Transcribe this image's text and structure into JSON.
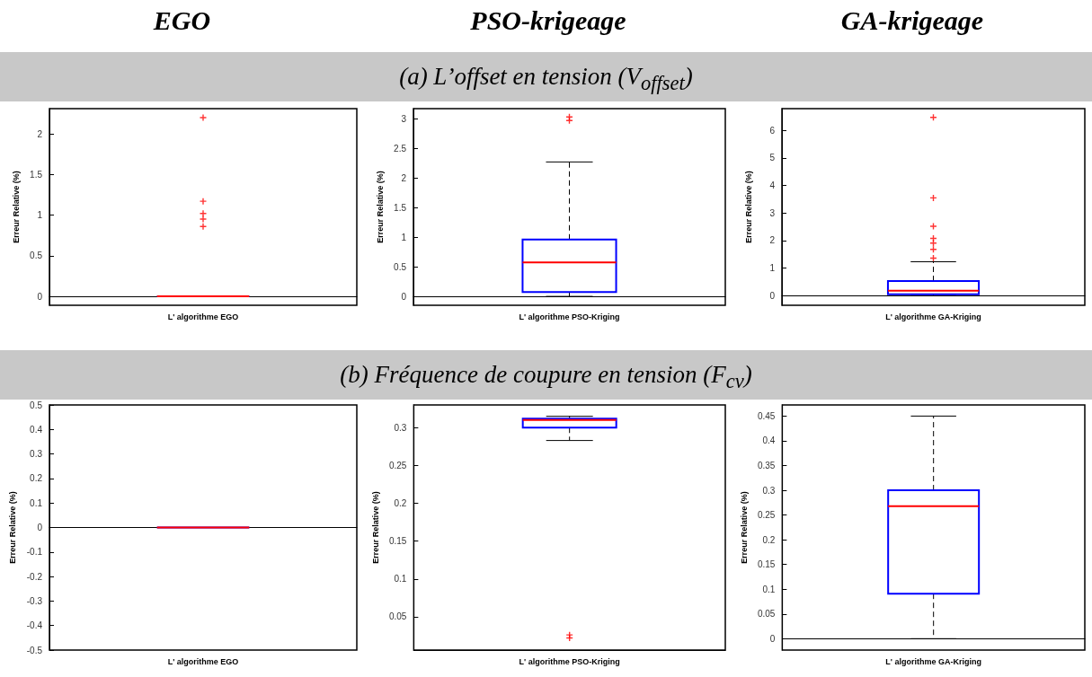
{
  "chart_data": [
    {
      "type": "box",
      "title": "EGO",
      "annotations": [
        "(a)  L’offset en tension (V$_{offset}$)"
      ],
      "categories": [
        "L' algorithme EGO"
      ],
      "ylabel": "Erreur Relative (%)",
      "ylim": [
        -0.11,
        2.31
      ],
      "yticks": [
        0,
        0.5,
        1,
        1.5,
        2
      ],
      "series": [
        {
          "color": "#0000ff",
          "boxes": [
            {
              "low": 0,
              "q1": 0,
              "median": 0,
              "q3": 0,
              "high": 0,
              "outliers": [
                2.2,
                1.17,
                1.02,
                0.95,
                0.86
              ]
            }
          ]
        }
      ]
    },
    {
      "type": "box",
      "title": "PSO-krigeage",
      "categories": [
        "L' algorithme PSO-Kriging"
      ],
      "ylabel": "Erreur Relative (%)",
      "ylim": [
        -0.15,
        3.17
      ],
      "yticks": [
        0,
        0.5,
        1,
        1.5,
        2,
        2.5,
        3
      ],
      "series": [
        {
          "color": "#0000ff",
          "boxes": [
            {
              "low": 0,
              "q1": 0.074,
              "median": 0.575,
              "q3": 0.96,
              "high": 2.27,
              "outliers": [
                3.03,
                2.97
              ]
            }
          ]
        }
      ]
    },
    {
      "type": "box",
      "title": "GA-krigeage",
      "categories": [
        "L' algorithme GA-Kriging"
      ],
      "ylabel": "Erreur Relative (%)",
      "ylim": [
        -0.35,
        6.79
      ],
      "yticks": [
        0,
        1,
        2,
        3,
        4,
        5,
        6
      ],
      "series": [
        {
          "color": "#0000ff",
          "boxes": [
            {
              "low": 0,
              "q1": 0.05,
              "median": 0.18,
              "q3": 0.53,
              "high": 1.23,
              "outliers": [
                6.47,
                3.55,
                2.52,
                2.08,
                1.91,
                1.68,
                1.36
              ]
            }
          ]
        }
      ]
    },
    {
      "type": "box",
      "annotations": [
        "(b)  Fréquence de coupure en tension (F$_{cv}$)"
      ],
      "categories": [
        "L' algorithme EGO"
      ],
      "ylabel": "Erreur Relative (%)",
      "ylim": [
        -0.5,
        0.5
      ],
      "yticks": [
        -0.5,
        -0.4,
        -0.3,
        -0.2,
        -0.1,
        0,
        0.1,
        0.2,
        0.3,
        0.4,
        0.5
      ],
      "series": [
        {
          "color": "#0000ff",
          "boxes": [
            {
              "low": 0,
              "q1": 0,
              "median": 0,
              "q3": 0,
              "high": 0
            }
          ]
        }
      ]
    },
    {
      "type": "box",
      "categories": [
        "L' algorithme PSO-Kriging"
      ],
      "ylabel": "Erreur Relative (%)",
      "ylim": [
        0.006,
        0.33
      ],
      "yticks": [
        0.05,
        0.1,
        0.15,
        0.2,
        0.25,
        0.3
      ],
      "series": [
        {
          "color": "#0000ff",
          "boxes": [
            {
              "low": 0.283,
              "q1": 0.3,
              "median": 0.31,
              "q3": 0.312,
              "high": 0.315,
              "outliers": [
                0.026,
                0.022
              ]
            }
          ]
        }
      ]
    },
    {
      "type": "box",
      "categories": [
        "L' algorithme GA-Kriging"
      ],
      "ylabel": "Erreur Relative (%)",
      "ylim": [
        -0.023,
        0.4725
      ],
      "yticks": [
        0,
        0.05,
        0.1,
        0.15,
        0.2,
        0.25,
        0.3,
        0.35,
        0.4,
        0.45
      ],
      "series": [
        {
          "color": "#0000ff",
          "boxes": [
            {
              "low": 0,
              "q1": 0.091,
              "median": 0.268,
              "q3": 0.3,
              "high": 0.45
            }
          ]
        }
      ]
    }
  ]
}
